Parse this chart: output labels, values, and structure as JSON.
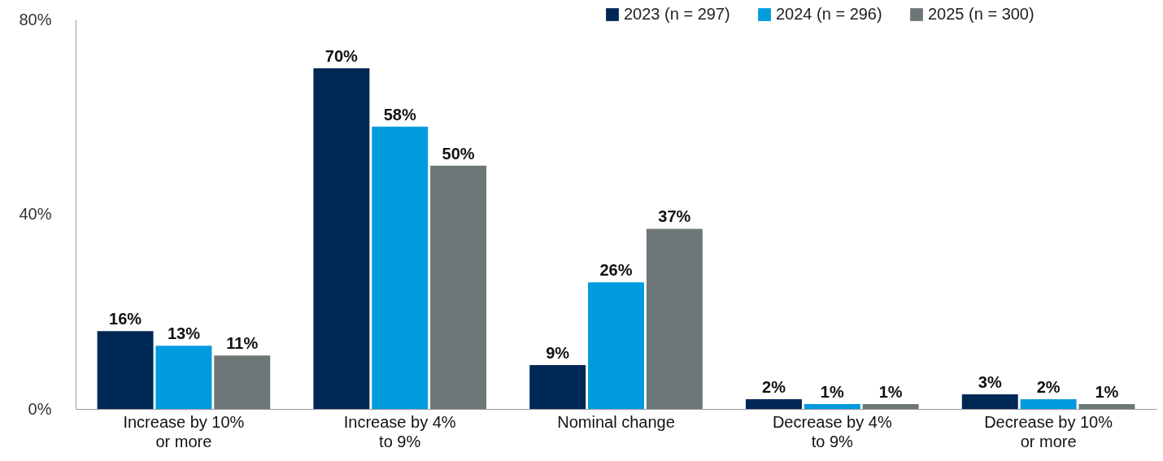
{
  "chart_data": {
    "type": "bar",
    "categories": [
      "Increase by 10% or more",
      "Increase by 4% to 9%",
      "Nominal change",
      "Decrease by 4% to 9%",
      "Decrease by 10% or more"
    ],
    "series": [
      {
        "name": "2023 (n = 297)",
        "color": "#002855",
        "values": [
          16,
          70,
          9,
          2,
          3
        ],
        "value_labels": [
          "16%",
          "70%",
          "9%",
          "2%",
          "3%"
        ]
      },
      {
        "name": "2024 (n = 296)",
        "color": "#009cde",
        "values": [
          13,
          58,
          26,
          1,
          2
        ],
        "value_labels": [
          "13%",
          "58%",
          "26%",
          "1%",
          "2%"
        ]
      },
      {
        "name": "2025 (n = 300)",
        "color": "#6e7778",
        "values": [
          11,
          50,
          37,
          1,
          1
        ],
        "value_labels": [
          "11%",
          "50%",
          "37%",
          "1%",
          "1%"
        ]
      }
    ],
    "ylim": [
      0,
      80
    ],
    "yticks": [
      {
        "value": 0,
        "label": "0%"
      },
      {
        "value": 40,
        "label": "40%"
      },
      {
        "value": 80,
        "label": "80%"
      }
    ],
    "grid": false,
    "legend": "top right"
  }
}
